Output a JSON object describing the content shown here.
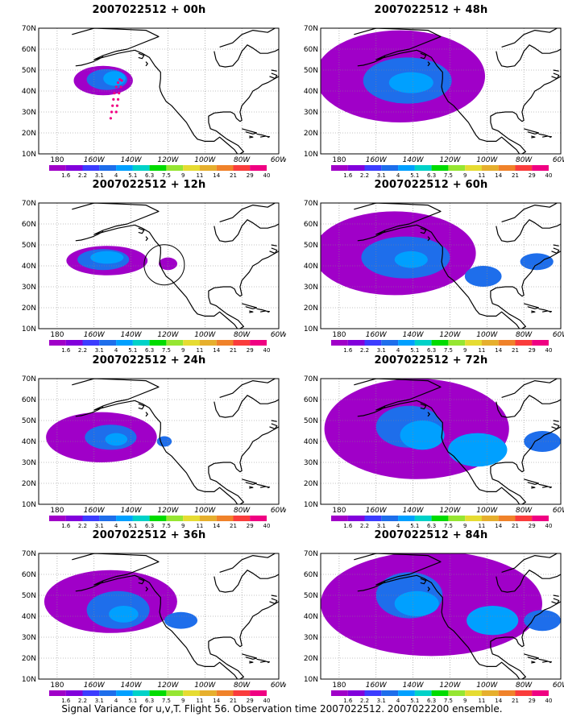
{
  "caption": "Signal Variance for u,v,T. Flight 56. Observation time 2007022512. 2007022200 ensemble.",
  "color_scale": {
    "labels": [
      "1.6",
      "2.2",
      "3.1",
      "4",
      "5.1",
      "6.3",
      "7.5",
      "9",
      "11",
      "14",
      "21",
      "29",
      "40"
    ],
    "colors": [
      "#a000c8",
      "#8200dc",
      "#3c3cff",
      "#1e6eeb",
      "#00a0ff",
      "#00d2c8",
      "#00dc00",
      "#96e632",
      "#e6dc32",
      "#e6af2d",
      "#f0822a",
      "#fa3c3c",
      "#f00082"
    ]
  },
  "axes": {
    "lat_labels": [
      "70N",
      "60N",
      "50N",
      "40N",
      "30N",
      "20N",
      "10N"
    ],
    "lon_labels": [
      "180",
      "160W",
      "140W",
      "120W",
      "100W",
      "80W",
      "60W"
    ]
  },
  "panels": [
    {
      "id": "p00",
      "title": "2007022512 + 00h"
    },
    {
      "id": "p48",
      "title": "2007022512 + 48h"
    },
    {
      "id": "p12",
      "title": "2007022512 + 12h"
    },
    {
      "id": "p60",
      "title": "2007022512 + 60h"
    },
    {
      "id": "p24",
      "title": "2007022512 + 24h"
    },
    {
      "id": "p72",
      "title": "2007022512 + 72h"
    },
    {
      "id": "p36",
      "title": "2007022512 + 36h"
    },
    {
      "id": "p84",
      "title": "2007022512 + 84h"
    }
  ]
}
